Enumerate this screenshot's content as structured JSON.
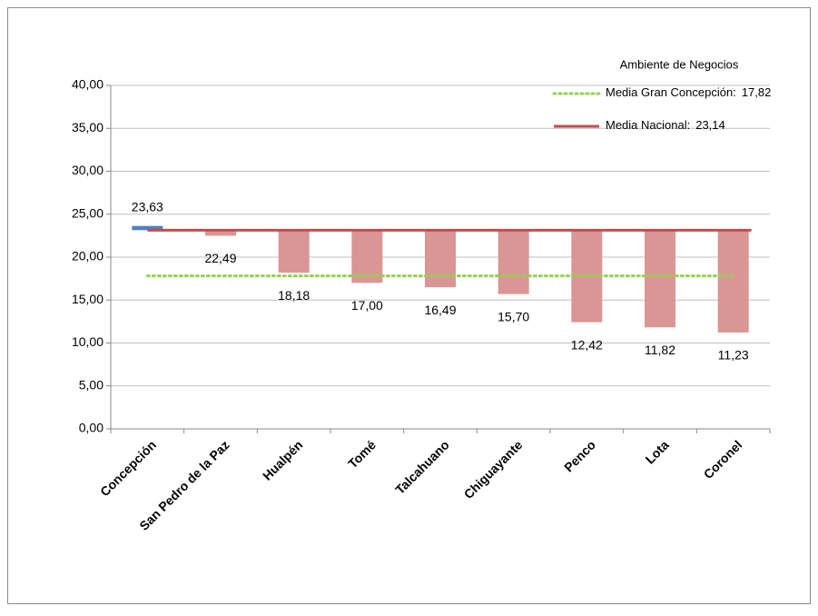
{
  "chart_data": {
    "type": "bar",
    "legend_title": "Ambiente de Negocios",
    "categories": [
      "Concepción",
      "San Pedro de la Paz",
      "Hualpén",
      "Tomé",
      "Talcahuano",
      "Chiguayante",
      "Penco",
      "Lota",
      "Coronel"
    ],
    "values": [
      23.63,
      22.49,
      18.18,
      17.0,
      16.49,
      15.7,
      12.42,
      11.82,
      11.23
    ],
    "value_labels": [
      "23,63",
      "22,49",
      "18,18",
      "17,00",
      "16,49",
      "15,70",
      "12,42",
      "11,82",
      "11,23"
    ],
    "color_above": "#4f81bd",
    "color_below": "#d99694",
    "reference_lines": [
      {
        "name": "Media Gran Concepción:",
        "value": 17.82,
        "value_label": "17,82",
        "color": "#92d050",
        "style": "dotted"
      },
      {
        "name": "Media Nacional:",
        "value": 23.14,
        "value_label": "23,14",
        "color": "#c0504d",
        "style": "solid"
      }
    ],
    "base_line": 1,
    "ylim": [
      0,
      40
    ],
    "yticks": [
      {
        "value": 0,
        "label": "0,00"
      },
      {
        "value": 5,
        "label": "5,00"
      },
      {
        "value": 10,
        "label": "10,00"
      },
      {
        "value": 15,
        "label": "15,00"
      },
      {
        "value": 20,
        "label": "20,00"
      },
      {
        "value": 25,
        "label": "25,00"
      },
      {
        "value": 30,
        "label": "30,00"
      },
      {
        "value": 35,
        "label": "35,00"
      },
      {
        "value": 40,
        "label": "40,00"
      }
    ],
    "grid": true
  }
}
